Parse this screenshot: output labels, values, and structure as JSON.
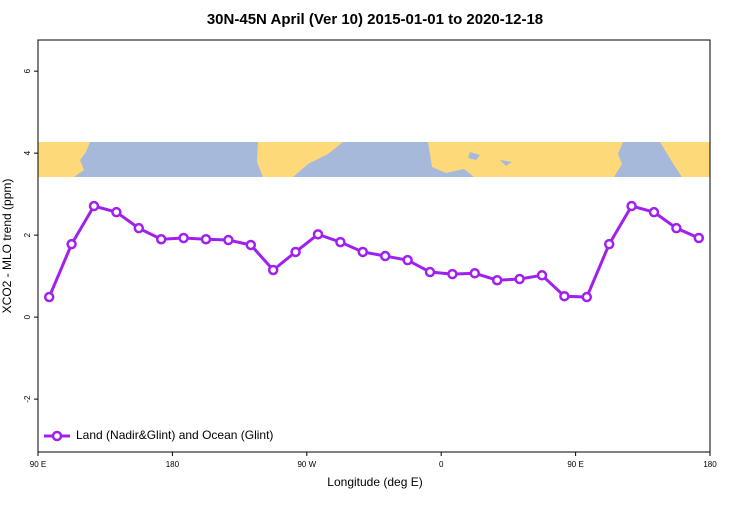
{
  "chart_data": {
    "type": "line",
    "title": "30N-45N April (Ver 10)   2015-01-01 to 2020-12-18",
    "xlabel": "Longitude (deg E)",
    "ylabel": "XCO2 - MLO trend (ppm)",
    "xlim": [
      90,
      540
    ],
    "ylim": [
      -3.29,
      6.76
    ],
    "xticks": [
      {
        "value": 90,
        "label": "90 E"
      },
      {
        "value": 180,
        "label": "180"
      },
      {
        "value": 270,
        "label": "90 W"
      },
      {
        "value": 360,
        "label": "0"
      },
      {
        "value": 450,
        "label": "90 E"
      },
      {
        "value": 540,
        "label": "180"
      }
    ],
    "yticks": [
      -2,
      0,
      2,
      4,
      6
    ],
    "legend": "bottom-left",
    "x": [
      97.5,
      112.5,
      127.5,
      142.5,
      157.5,
      172.5,
      187.5,
      202.5,
      217.5,
      232.5,
      247.5,
      262.5,
      277.5,
      292.5,
      307.5,
      322.5,
      337.5,
      352.5,
      367.5,
      382.5,
      397.5,
      412.5,
      427.5,
      442.5,
      457.5,
      472.5,
      487.5,
      502.5,
      517.5,
      532.5
    ],
    "series": [
      {
        "name": "Land (Nadir&Glint) and Ocean (Glint)",
        "color": "#a020f0",
        "values": [
          0.49,
          1.78,
          2.71,
          2.56,
          2.17,
          1.9,
          1.93,
          1.9,
          1.88,
          1.76,
          1.15,
          1.59,
          2.02,
          1.83,
          1.59,
          1.49,
          1.39,
          1.1,
          1.05,
          1.07,
          0.9,
          0.93,
          1.02,
          0.51,
          0.49,
          1.78,
          2.71,
          2.56,
          2.17,
          1.93
        ]
      }
    ]
  }
}
